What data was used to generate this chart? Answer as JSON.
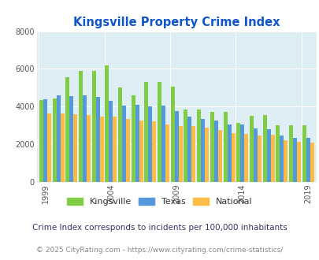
{
  "title": "Kingsville Property Crime Index",
  "years": [
    1999,
    2000,
    2001,
    2002,
    2003,
    2004,
    2005,
    2006,
    2007,
    2008,
    2009,
    2010,
    2011,
    2012,
    2013,
    2014,
    2015,
    2016,
    2017,
    2018,
    2019
  ],
  "kingsville": [
    4350,
    4450,
    5550,
    5900,
    5900,
    6200,
    5000,
    4600,
    5300,
    5300,
    5050,
    3850,
    3850,
    3700,
    3700,
    3150,
    3500,
    3550,
    3000,
    3000,
    3000
  ],
  "texas": [
    4400,
    4600,
    4550,
    4600,
    4500,
    4300,
    4050,
    4100,
    4000,
    4050,
    3750,
    3450,
    3350,
    3250,
    3050,
    3050,
    2850,
    2800,
    2450,
    2350,
    2350
  ],
  "national": [
    3650,
    3650,
    3600,
    3550,
    3450,
    3450,
    3350,
    3250,
    3200,
    3050,
    2950,
    2950,
    2900,
    2750,
    2600,
    2550,
    2450,
    2500,
    2200,
    2150,
    2100
  ],
  "kingsville_color": "#80cc44",
  "texas_color": "#5599dd",
  "national_color": "#ffbb44",
  "bg_color": "#ddeef5",
  "title_color": "#1155cc",
  "grid_color": "#ffffff",
  "ylabel_max": 8000,
  "ylabel_step": 2000,
  "footnote": "Crime Index corresponds to incidents per 100,000 inhabitants",
  "copyright": "© 2025 CityRating.com - https://www.cityrating.com/crime-statistics/",
  "footnote_color": "#333366",
  "copyright_color": "#888888"
}
